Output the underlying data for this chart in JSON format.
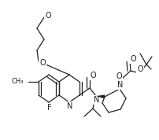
{
  "bg": "#ffffff",
  "lc": "#222222",
  "lw": 0.9,
  "fs": 6.5,
  "xlim": [
    0,
    203
  ],
  "ylim": [
    0,
    178
  ]
}
